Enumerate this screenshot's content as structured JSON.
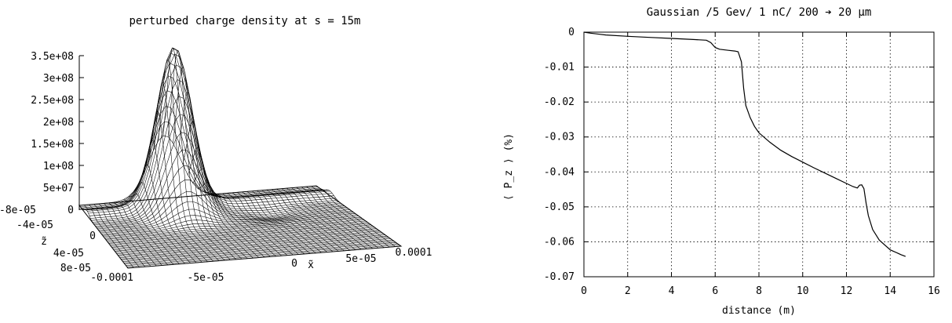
{
  "left_plot": {
    "title": "perturbed charge density at s = 15m",
    "z_ticks": [
      "3.5e+08",
      "3e+08",
      "2.5e+08",
      "2e+08",
      "1.5e+08",
      "1e+08",
      "5e+07",
      "0"
    ],
    "y_ticks": [
      "-8e-05",
      "-4e-05",
      "0",
      "4e-05",
      "8e-05"
    ],
    "x_ticks": [
      "-0.0001",
      "-5e-05",
      "0",
      "5e-05",
      "0.0001"
    ],
    "x_label": "x̃",
    "y_label": "z̃"
  },
  "chart_data": {
    "type": "line",
    "title": "Gaussian /5 Gev/ 1 nC/ 200 ➔ 20 µm",
    "xlabel": "distance (m)",
    "ylabel": "⟨ P_z ⟩ (%)",
    "xlim": [
      0,
      16
    ],
    "ylim": [
      -0.07,
      0
    ],
    "grid": true,
    "x_ticks": [
      0,
      2,
      4,
      6,
      8,
      10,
      12,
      14,
      16
    ],
    "x_tick_labels": [
      "0",
      "2",
      "4",
      "6",
      "8",
      "10",
      "12",
      "14",
      "16"
    ],
    "y_ticks": [
      0,
      -0.01,
      -0.02,
      -0.03,
      -0.04,
      -0.05,
      -0.06,
      -0.07
    ],
    "y_tick_labels": [
      "0",
      "-0.01",
      "-0.02",
      "-0.03",
      "-0.04",
      "-0.05",
      "-0.06",
      "-0.07"
    ],
    "series": [
      {
        "x": [
          0,
          0.3,
          1,
          2,
          3,
          4,
          5,
          5.6,
          5.8,
          6.0,
          6.2,
          6.6,
          6.9,
          7.05,
          7.2,
          7.3,
          7.4,
          7.6,
          7.8,
          8.0,
          8.5,
          9,
          9.5,
          10,
          10.5,
          11,
          11.5,
          12,
          12.3,
          12.5,
          12.6,
          12.7,
          12.8,
          12.9,
          13.0,
          13.2,
          13.5,
          14,
          14.5,
          14.7
        ],
        "y": [
          0,
          -0.0003,
          -0.0008,
          -0.0012,
          -0.0015,
          -0.0018,
          -0.0021,
          -0.0023,
          -0.003,
          -0.0044,
          -0.0049,
          -0.0052,
          -0.0054,
          -0.0056,
          -0.0085,
          -0.016,
          -0.021,
          -0.0245,
          -0.027,
          -0.0288,
          -0.0315,
          -0.0338,
          -0.0356,
          -0.0372,
          -0.0388,
          -0.0403,
          -0.0418,
          -0.0433,
          -0.0442,
          -0.0446,
          -0.0438,
          -0.0437,
          -0.0448,
          -0.049,
          -0.0525,
          -0.0565,
          -0.0595,
          -0.0623,
          -0.0637,
          -0.0642
        ]
      }
    ]
  }
}
